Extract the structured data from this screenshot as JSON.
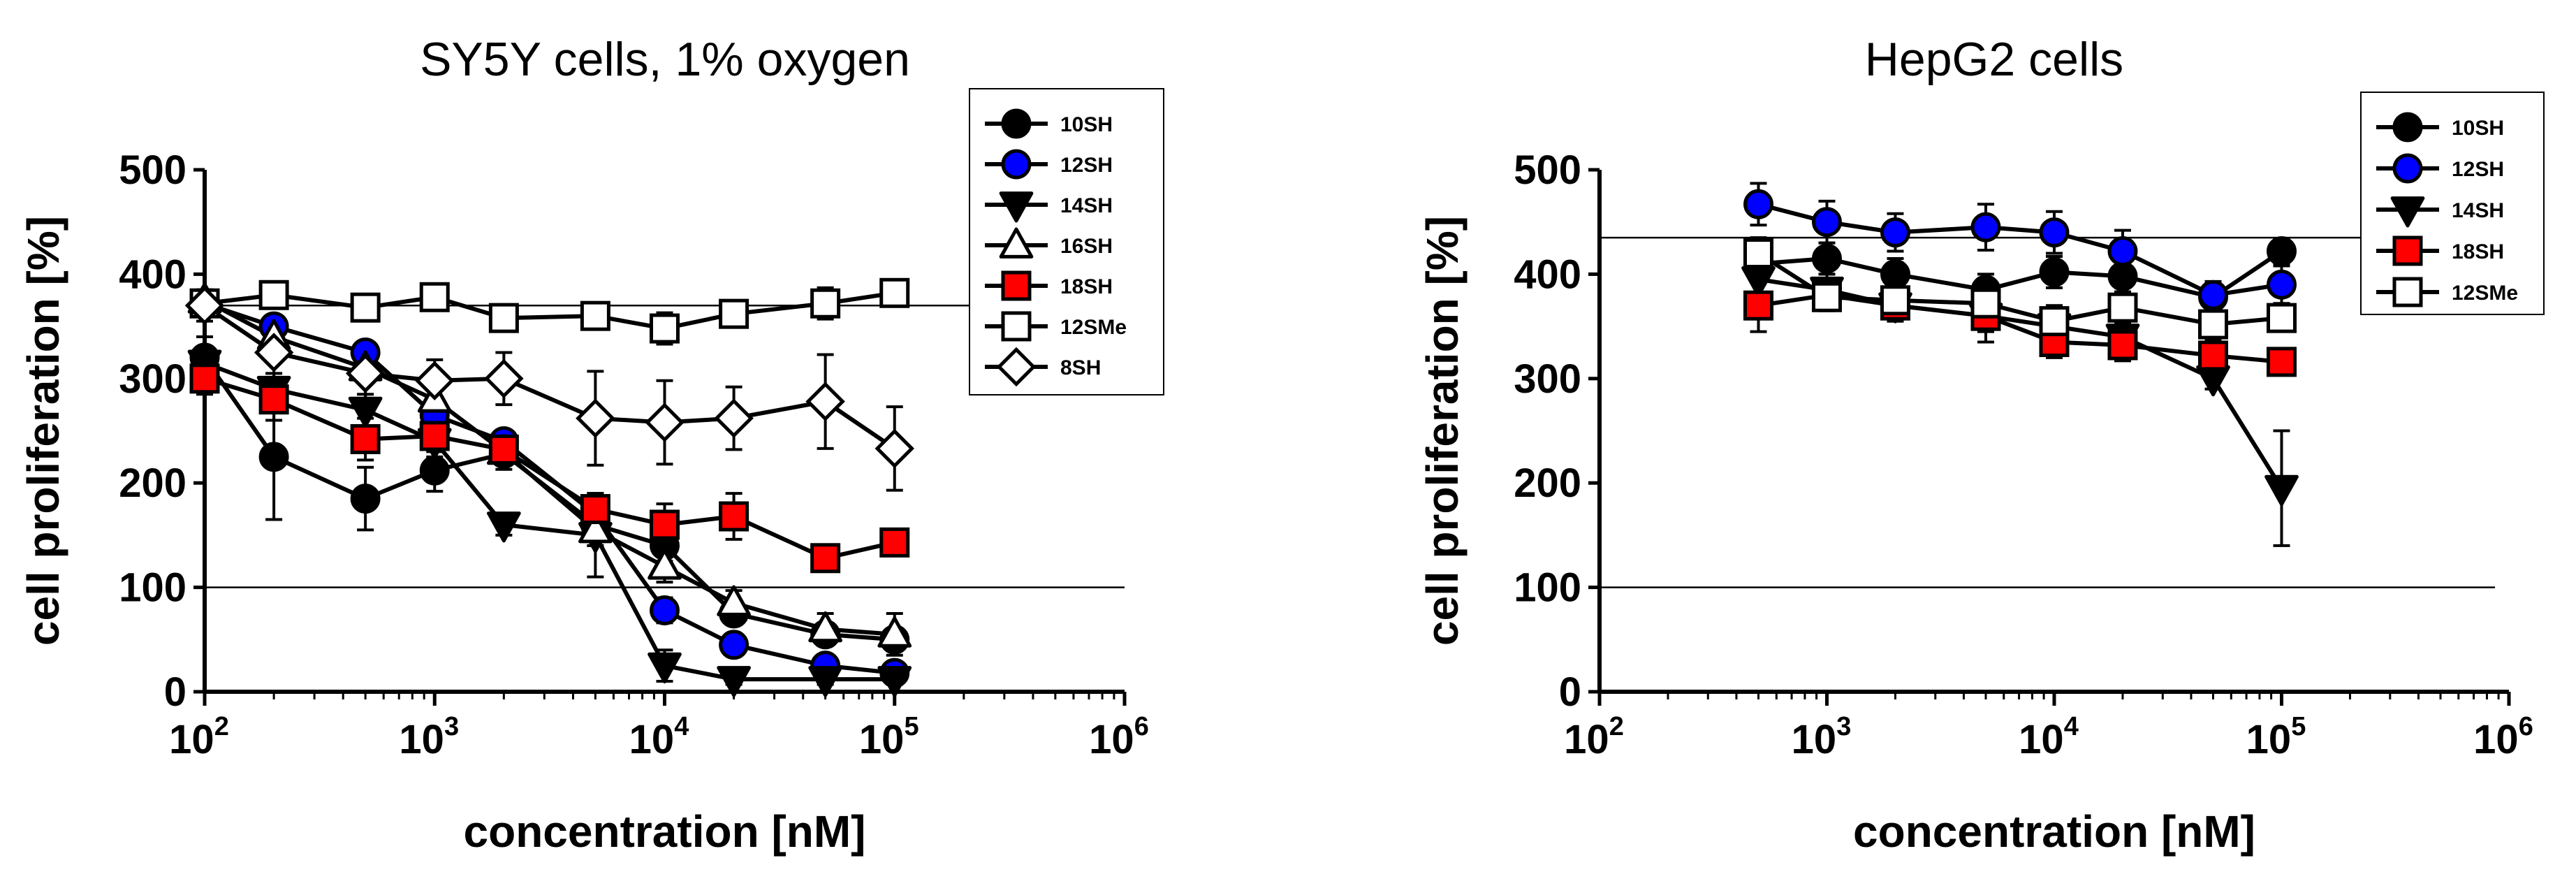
{
  "chart_data": [
    {
      "type": "line",
      "title": "SY5Y cells, 1% oxygen",
      "xlabel": "concentration [nM]",
      "ylabel": "cell proliferation [%]",
      "xscale": "log",
      "xlim": [
        100,
        1000000
      ],
      "ylim": [
        0,
        500
      ],
      "yticks": [
        0,
        100,
        200,
        300,
        400,
        500
      ],
      "xticks": [
        {
          "base": "10",
          "exp": "2"
        },
        {
          "base": "10",
          "exp": "3"
        },
        {
          "base": "10",
          "exp": "4"
        },
        {
          "base": "10",
          "exp": "5"
        },
        {
          "base": "10",
          "exp": "6"
        }
      ],
      "reference_lines": [
        370,
        100
      ],
      "legend_position": "top-right",
      "series": [
        {
          "name": "10SH",
          "marker": "circle",
          "fill": "#000000",
          "x": [
            100,
            200,
            500,
            1000,
            2000,
            5000,
            10000,
            20000,
            50000,
            100000
          ],
          "y": [
            320,
            225,
            185,
            212,
            228,
            160,
            140,
            75,
            55,
            50
          ],
          "err": [
            20,
            60,
            30,
            20,
            15,
            20,
            15,
            10,
            10,
            10
          ]
        },
        {
          "name": "12SH",
          "marker": "circle",
          "fill": "#0000ff",
          "x": [
            100,
            200,
            500,
            1000,
            2000,
            5000,
            10000,
            20000,
            50000,
            100000
          ],
          "y": [
            372,
            350,
            325,
            265,
            240,
            170,
            78,
            45,
            25,
            18
          ],
          "err": [
            10,
            10,
            10,
            12,
            10,
            12,
            12,
            10,
            8,
            8
          ]
        },
        {
          "name": "14SH",
          "marker": "triangle-down",
          "fill": "#000000",
          "x": [
            100,
            200,
            500,
            1000,
            2000,
            5000,
            10000,
            20000,
            50000,
            100000
          ],
          "y": [
            315,
            290,
            270,
            240,
            160,
            150,
            25,
            12,
            12,
            12
          ],
          "err": [
            15,
            15,
            15,
            15,
            10,
            40,
            15,
            5,
            5,
            5
          ]
        },
        {
          "name": "16SH",
          "marker": "triangle-up",
          "fill": "#ffffff",
          "x": [
            100,
            200,
            500,
            1000,
            2000,
            5000,
            10000,
            20000,
            50000,
            100000
          ],
          "y": [
            375,
            340,
            310,
            280,
            230,
            155,
            120,
            85,
            60,
            55
          ],
          "err": [
            10,
            10,
            10,
            12,
            12,
            15,
            15,
            12,
            15,
            20
          ]
        },
        {
          "name": "18SH",
          "marker": "square",
          "fill": "#ff0000",
          "x": [
            100,
            200,
            500,
            1000,
            2000,
            5000,
            10000,
            20000,
            50000,
            100000
          ],
          "y": [
            300,
            280,
            242,
            245,
            232,
            175,
            160,
            168,
            128,
            143
          ],
          "err": [
            15,
            20,
            20,
            15,
            12,
            15,
            20,
            22,
            10,
            10
          ]
        },
        {
          "name": "12SMe",
          "marker": "square",
          "fill": "#ffffff",
          "x": [
            100,
            200,
            500,
            1000,
            2000,
            5000,
            10000,
            20000,
            50000,
            100000
          ],
          "y": [
            372,
            380,
            368,
            378,
            358,
            360,
            348,
            362,
            372,
            382
          ],
          "err": [
            10,
            10,
            8,
            8,
            8,
            10,
            15,
            10,
            15,
            10
          ]
        },
        {
          "name": "8SH",
          "marker": "diamond",
          "fill": "#ffffff",
          "x": [
            100,
            200,
            500,
            1000,
            2000,
            5000,
            10000,
            20000,
            50000,
            100000
          ],
          "y": [
            370,
            325,
            305,
            298,
            300,
            262,
            258,
            262,
            278,
            233
          ],
          "err": [
            15,
            25,
            25,
            20,
            25,
            45,
            40,
            30,
            45,
            40
          ]
        }
      ]
    },
    {
      "type": "line",
      "title": "HepG2 cells",
      "xlabel": "concentration [nM]",
      "ylabel": "cell proliferation [%]",
      "xscale": "log",
      "xlim": [
        100,
        1000000
      ],
      "ylim": [
        0,
        500
      ],
      "yticks": [
        0,
        100,
        200,
        300,
        400,
        500
      ],
      "xticks": [
        {
          "base": "10",
          "exp": "2"
        },
        {
          "base": "10",
          "exp": "3"
        },
        {
          "base": "10",
          "exp": "4"
        },
        {
          "base": "10",
          "exp": "5"
        },
        {
          "base": "10",
          "exp": "6"
        }
      ],
      "reference_lines": [
        435,
        100
      ],
      "legend_position": "top-right",
      "series": [
        {
          "name": "10SH",
          "marker": "circle",
          "fill": "#000000",
          "x": [
            500,
            1000,
            2000,
            5000,
            10000,
            20000,
            50000,
            100000
          ],
          "y": [
            410,
            415,
            400,
            385,
            402,
            398,
            378,
            422
          ],
          "err": [
            15,
            15,
            15,
            15,
            15,
            15,
            15,
            12
          ]
        },
        {
          "name": "12SH",
          "marker": "circle",
          "fill": "#0000ff",
          "x": [
            500,
            1000,
            2000,
            5000,
            10000,
            20000,
            50000,
            100000
          ],
          "y": [
            467,
            450,
            440,
            445,
            440,
            422,
            380,
            390
          ],
          "err": [
            20,
            20,
            18,
            22,
            20,
            20,
            12,
            18
          ]
        },
        {
          "name": "14SH",
          "marker": "triangle-down",
          "fill": "#000000",
          "x": [
            500,
            1000,
            2000,
            5000,
            10000,
            20000,
            50000,
            100000
          ],
          "y": [
            395,
            385,
            370,
            360,
            350,
            340,
            300,
            195
          ],
          "err": [
            15,
            15,
            15,
            15,
            15,
            15,
            10,
            55
          ]
        },
        {
          "name": "18SH",
          "marker": "square",
          "fill": "#ff0000",
          "x": [
            500,
            1000,
            2000,
            5000,
            10000,
            20000,
            50000,
            100000
          ],
          "y": [
            370,
            380,
            370,
            360,
            335,
            332,
            322,
            316
          ],
          "err": [
            25,
            15,
            15,
            25,
            15,
            15,
            10,
            10
          ]
        },
        {
          "name": "12SMe",
          "marker": "square",
          "fill": "#ffffff",
          "x": [
            500,
            1000,
            2000,
            5000,
            10000,
            20000,
            50000,
            100000
          ],
          "y": [
            420,
            378,
            375,
            372,
            355,
            368,
            352,
            358
          ],
          "err": [
            15,
            12,
            12,
            15,
            15,
            15,
            15,
            12
          ]
        }
      ]
    }
  ]
}
